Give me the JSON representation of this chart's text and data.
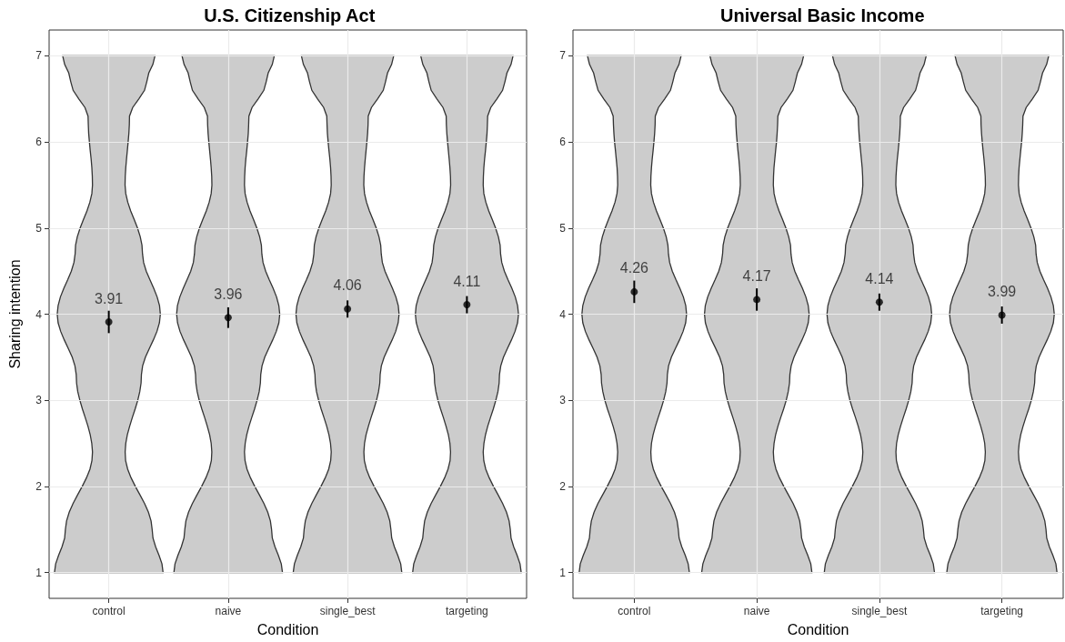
{
  "chart_data": [
    {
      "type": "scatter",
      "title": "U.S. Citizenship Act",
      "xlabel": "Condition",
      "ylabel": "Sharing intention",
      "categories": [
        "control",
        "naive",
        "single_best",
        "targeting"
      ],
      "series": [
        {
          "color": "#000000",
          "values": [
            3.91,
            3.96,
            4.06,
            4.11
          ],
          "errors": [
            0.13,
            0.12,
            0.1,
            0.1
          ]
        }
      ],
      "ylim": [
        0.7,
        7.3
      ],
      "yticks": [
        1,
        2,
        3,
        4,
        5,
        6,
        7
      ],
      "grid": true,
      "marker": "circle",
      "data_labels": true
    },
    {
      "type": "scatter",
      "title": "Universal Basic Income",
      "xlabel": "Condition",
      "categories": [
        "control",
        "naive",
        "single_best",
        "targeting"
      ],
      "series": [
        {
          "color": "#000000",
          "values": [
            4.26,
            4.17,
            4.14,
            3.99
          ],
          "errors": [
            0.13,
            0.13,
            0.1,
            0.1
          ]
        }
      ],
      "ylim": [
        0.7,
        7.3
      ],
      "yticks": [
        1,
        2,
        3,
        4,
        5,
        6,
        7
      ],
      "grid": true,
      "marker": "circle",
      "data_labels": true
    }
  ]
}
